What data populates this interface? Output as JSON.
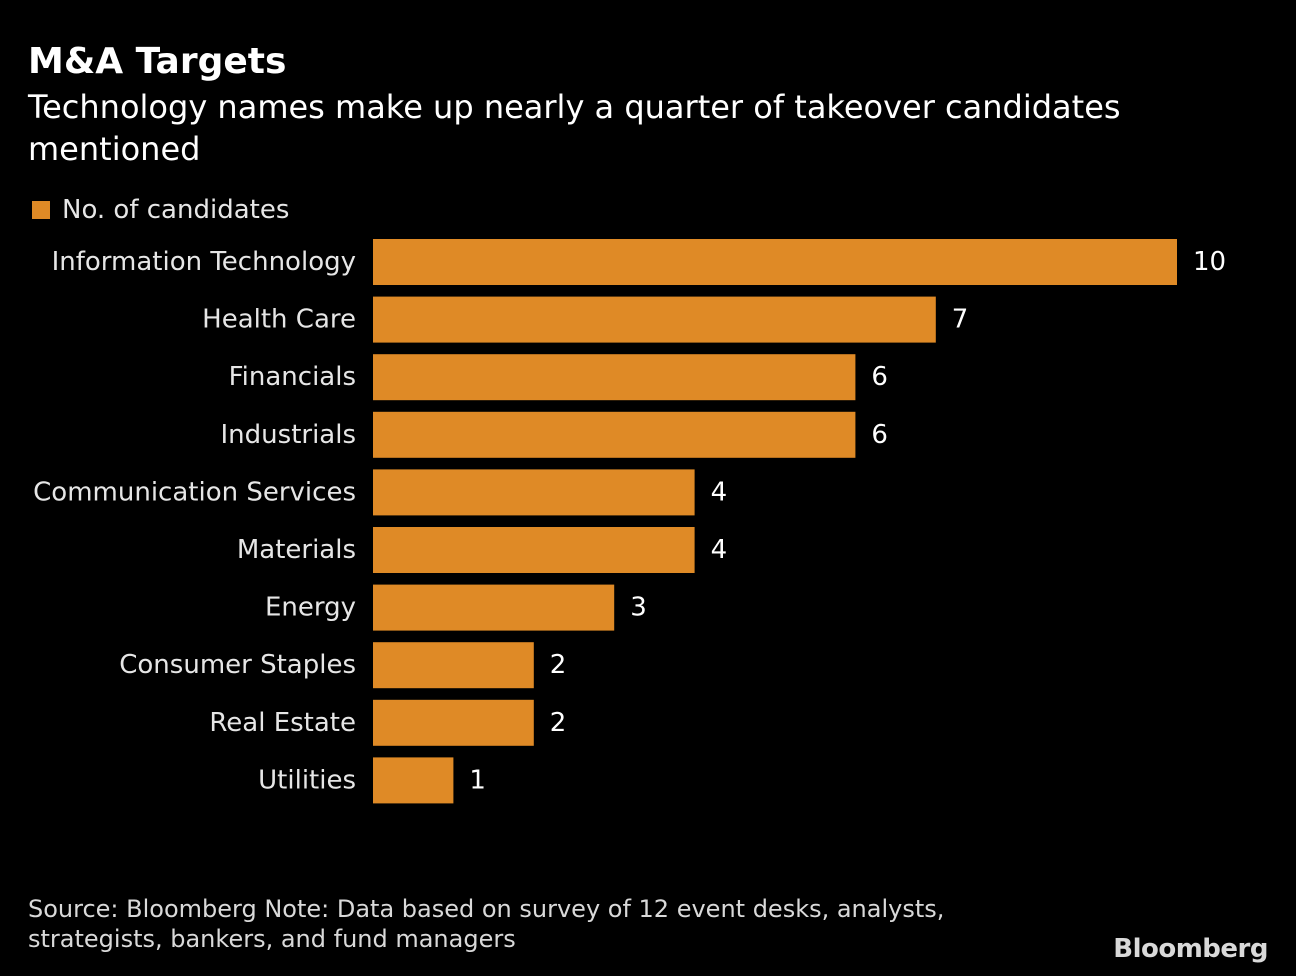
{
  "header": {
    "title": "M&A Targets",
    "subtitle": "Technology names make up nearly a quarter of takeover candidates mentioned"
  },
  "legend": {
    "label": "No. of candidates"
  },
  "footer": {
    "source": "Source: Bloomberg Note: Data based on survey of 12 event desks, analysts, strategists, bankers, and fund managers",
    "brand": "Bloomberg"
  },
  "colors": {
    "bar": "#DF8A26",
    "background": "#000000",
    "text": "#FFFFFF"
  },
  "chart_data": {
    "type": "bar",
    "orientation": "horizontal",
    "title": "M&A Targets",
    "subtitle": "Technology names make up nearly a quarter of takeover candidates mentioned",
    "categories": [
      "Information Technology",
      "Health Care",
      "Financials",
      "Industrials",
      "Communication Services",
      "Materials",
      "Energy",
      "Consumer Staples",
      "Real Estate",
      "Utilities"
    ],
    "series": [
      {
        "name": "No. of candidates",
        "values": [
          10,
          7,
          6,
          6,
          4,
          4,
          3,
          2,
          2,
          1
        ]
      }
    ],
    "xlim": [
      0,
      10
    ],
    "grid": false,
    "legend_position": "top-left",
    "data_labels": true
  }
}
